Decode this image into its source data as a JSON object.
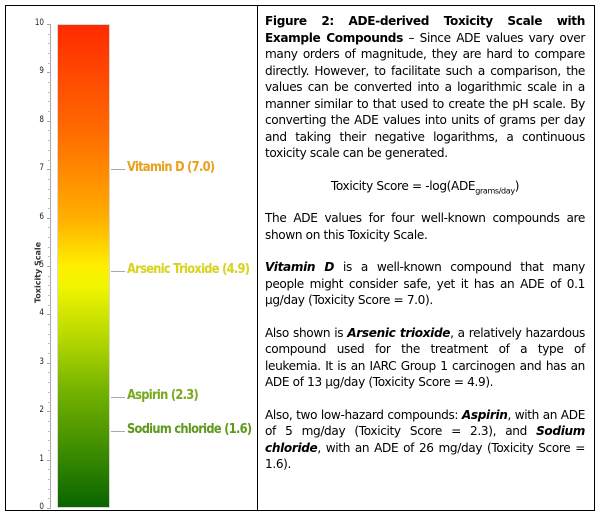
{
  "caption": {
    "title_bold": "Figure 2: ADE-derived Toxicity Scale with Example Compounds",
    "intro": " – Since ADE values vary over many orders of magnitude, they are hard to compare directly. However, to facilitate such a comparison, the values can be converted into a logarithmic scale in a manner similar to that used to create the pH scale. By converting the ADE values into units of grams per day and taking their negative logarithms, a continuous toxicity scale can be generated.",
    "formula_main": "Toxicity Score = -log(ADE",
    "formula_sub": "grams/day",
    "formula_close": ")",
    "para2": "The ADE values for four well-known compounds are shown on this Toxicity Scale.",
    "para3_em": "Vitamin D",
    "para3_rest": " is a well-known compound that many people might consider safe, yet it has an ADE of 0.1 µg/day (Toxicity Score = 7.0).",
    "para4_start": "Also shown is ",
    "para4_em": "Arsenic trioxide",
    "para4_rest": ", a relatively hazardous compound used for the treatment of a type of leukemia. It is an IARC Group 1 carcinogen and has an ADE of 13 µg/day (Toxicity Score = 4.9).",
    "para5_start": "Also, two low-hazard compounds: ",
    "para5_em1": "Aspirin",
    "para5_mid": ", with an ADE of 5 mg/day (Toxicity Score = 2.3), and ",
    "para5_em2": "Sodium chloride",
    "para5_rest": ", with an ADE of 26 mg/day (Toxicity Score = 1.6)."
  },
  "chart_data": {
    "type": "bar",
    "title": "",
    "xlabel": "",
    "ylabel": "Toxicity Scale",
    "ylim": [
      0,
      10
    ],
    "yticks": [
      "0",
      "1",
      "2",
      "3",
      "4",
      "5",
      "6",
      "7",
      "8",
      "9",
      "10"
    ],
    "gradient": {
      "top": "#ff2a00",
      "middle": "#ffef00",
      "bottom": "#0a6500"
    },
    "grid": false,
    "annotations": [
      {
        "label": "Vitamin D (7.0)",
        "value": 7.0,
        "color": "#e8a21c"
      },
      {
        "label": "Arsenic Trioxide (4.9)",
        "value": 4.9,
        "color": "#d9d41a"
      },
      {
        "label": "Aspirin (2.3)",
        "value": 2.3,
        "color": "#7aa91e"
      },
      {
        "label": "Sodium chloride (1.6)",
        "value": 1.6,
        "color": "#5f9a1e"
      }
    ]
  }
}
